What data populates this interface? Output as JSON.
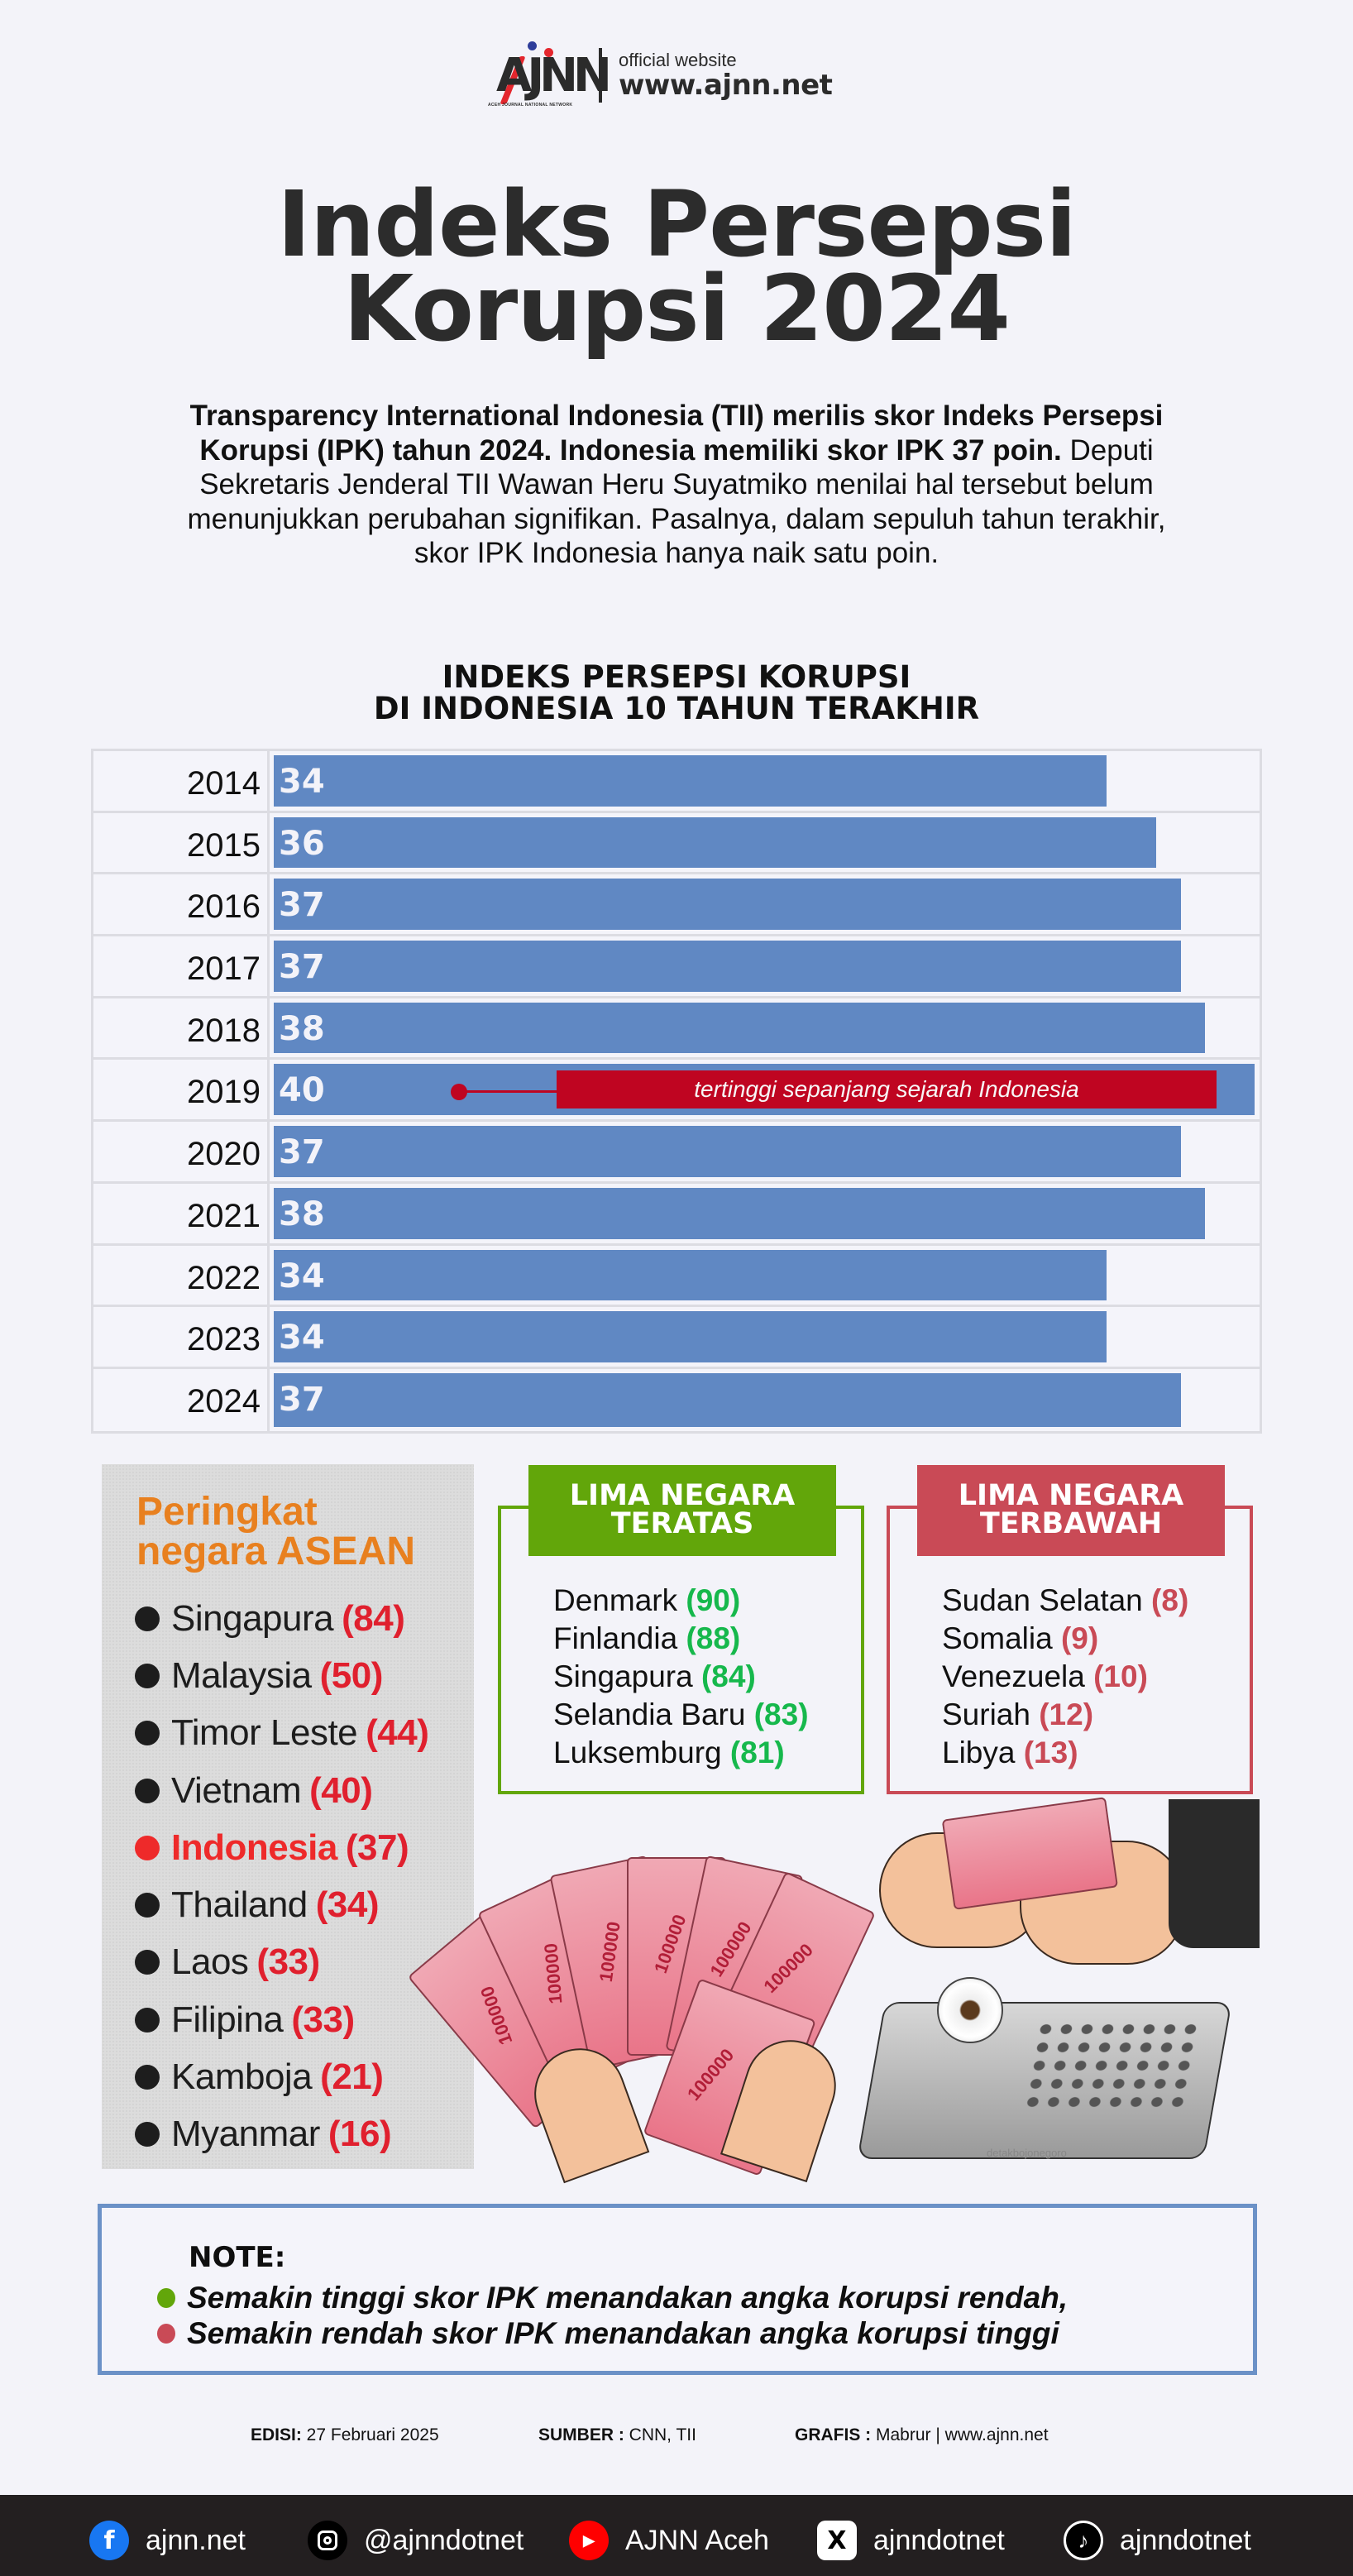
{
  "header": {
    "logo_text": "AJNN",
    "logo_subtitle": "ACEH JOURNAL NATIONAL NETWORK",
    "official_label": "official website",
    "website": "www.ajnn.net"
  },
  "title": {
    "line1": "Indeks Persepsi",
    "line2": "Korupsi 2024"
  },
  "intro": {
    "bold": "Transparency International Indonesia (TII) merilis skor Indeks Persepsi Korupsi (IPK) tahun 2024. Indonesia memiliki skor IPK 37 poin.",
    "regular": " Deputi Sekretaris Jenderal TII Wawan Heru Suyatmiko menilai hal tersebut belum menunjukkan perubahan signifikan. Pasalnya, dalam sepuluh tahun terakhir, skor IPK Indonesia hanya naik satu poin."
  },
  "chart_data": {
    "type": "bar",
    "orientation": "horizontal",
    "title": "INDEKS PERSEPSI KORUPSI DI INDONESIA 10 TAHUN TERAKHIR",
    "title_line1": "INDEKS PERSEPSI KORUPSI",
    "title_line2": "DI INDONESIA 10 TAHUN TERAKHIR",
    "categories": [
      "2014",
      "2015",
      "2016",
      "2017",
      "2018",
      "2019",
      "2020",
      "2021",
      "2022",
      "2023",
      "2024"
    ],
    "values": [
      34,
      36,
      37,
      37,
      38,
      40,
      37,
      38,
      34,
      34,
      37
    ],
    "labels": [
      "34",
      "36",
      "37",
      "37",
      "38",
      "40",
      "37",
      "38",
      "34",
      "34",
      "37"
    ],
    "xlabel": "",
    "ylabel": "",
    "xlim": [
      0,
      40
    ],
    "grid": false,
    "bar_color": "#6088c3",
    "annotation": {
      "category": "2019",
      "text": "tertinggi sepanjang sejarah Indonesia",
      "color": "#bf0521"
    }
  },
  "asean": {
    "title_line1": "Peringkat",
    "title_line2": "negara ASEAN",
    "items": [
      {
        "country": "Singapura",
        "score": "(84)"
      },
      {
        "country": "Malaysia",
        "score": "(50)"
      },
      {
        "country": "Timor Leste",
        "score": "(44)"
      },
      {
        "country": "Vietnam",
        "score": "(40)"
      },
      {
        "country": "Indonesia",
        "score": "(37)",
        "highlight": true
      },
      {
        "country": "Thailand",
        "score": "(34)"
      },
      {
        "country": "Laos",
        "score": "(33)"
      },
      {
        "country": "Filipina",
        "score": "(33)"
      },
      {
        "country": "Kamboja",
        "score": "(21)"
      },
      {
        "country": "Myanmar",
        "score": "(16)"
      }
    ]
  },
  "top_five": {
    "title_line1": "LIMA NEGARA",
    "title_line2": "TERATAS",
    "color": "#62a60a",
    "items": [
      {
        "country": "Denmark",
        "score": "(90)"
      },
      {
        "country": "Finlandia",
        "score": "(88)"
      },
      {
        "country": "Singapura",
        "score": "(84)"
      },
      {
        "country": "Selandia Baru",
        "score": "(83)"
      },
      {
        "country": "Luksemburg",
        "score": "(81)"
      }
    ]
  },
  "bottom_five": {
    "title_line1": "LIMA NEGARA",
    "title_line2": "TERBAWAH",
    "color": "#c94a56",
    "items": [
      {
        "country": "Sudan Selatan",
        "score": "(8)"
      },
      {
        "country": "Somalia",
        "score": "(9)"
      },
      {
        "country": "Venezuela",
        "score": "(10)"
      },
      {
        "country": "Suriah",
        "score": "(12)"
      },
      {
        "country": "Libya",
        "score": "(13)"
      }
    ]
  },
  "illustration": {
    "bill_label": "100000",
    "watermark": "detakbojonegoro"
  },
  "note": {
    "heading": "NOTE:",
    "lines": [
      "Semakin tinggi skor IPK menandakan angka korupsi rendah,",
      "Semakin rendah skor IPK menandakan angka korupsi tinggi"
    ]
  },
  "credits": {
    "edition_label": "EDISI:",
    "edition_value": " 27 Februari 2025",
    "source_label": "SUMBER :",
    "source_value": " CNN, TII",
    "graphics_label": "GRAFIS :",
    "graphics_value": " Mabrur | www.ajnn.net"
  },
  "footer": {
    "social": [
      {
        "icon": "facebook-icon",
        "glyph": "f",
        "label": "ajnn.net"
      },
      {
        "icon": "instagram-icon",
        "glyph": "",
        "label": "@ajnndotnet"
      },
      {
        "icon": "youtube-icon",
        "glyph": "▶",
        "label": "AJNN Aceh"
      },
      {
        "icon": "x-icon",
        "glyph": "X",
        "label": "ajnndotnet"
      },
      {
        "icon": "tiktok-icon",
        "glyph": "♪",
        "label": "ajnndotnet"
      }
    ]
  }
}
